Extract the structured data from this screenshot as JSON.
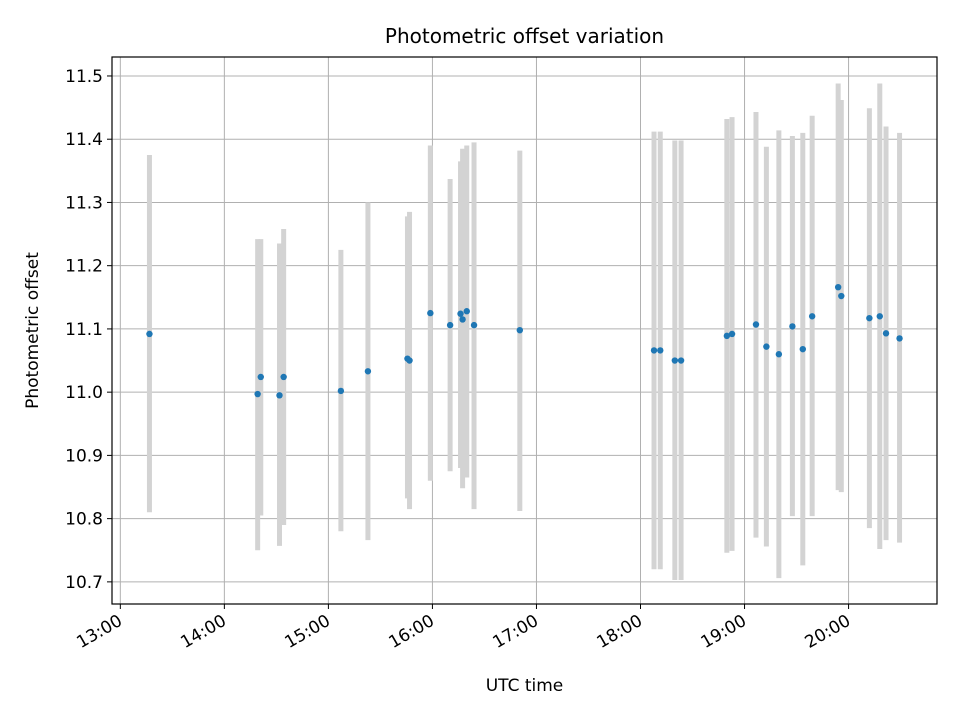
{
  "chart_data": {
    "type": "scatter",
    "title": "Photometric offset variation",
    "xlabel": "UTC time",
    "ylabel": "Photometric offset",
    "grid": true,
    "xlim_hours": [
      12.92,
      20.85
    ],
    "ylim": [
      10.665,
      11.53
    ],
    "x_ticks": [
      {
        "value": 13,
        "label": "13:00"
      },
      {
        "value": 14,
        "label": "14:00"
      },
      {
        "value": 15,
        "label": "15:00"
      },
      {
        "value": 16,
        "label": "16:00"
      },
      {
        "value": 17,
        "label": "17:00"
      },
      {
        "value": 18,
        "label": "18:00"
      },
      {
        "value": 19,
        "label": "19:00"
      },
      {
        "value": 20,
        "label": "20:00"
      }
    ],
    "y_ticks": [
      {
        "value": 10.7,
        "label": "10.7"
      },
      {
        "value": 10.8,
        "label": "10.8"
      },
      {
        "value": 10.9,
        "label": "10.9"
      },
      {
        "value": 11.0,
        "label": "11.0"
      },
      {
        "value": 11.1,
        "label": "11.1"
      },
      {
        "value": 11.2,
        "label": "11.2"
      },
      {
        "value": 11.3,
        "label": "11.3"
      },
      {
        "value": 11.4,
        "label": "11.4"
      },
      {
        "value": 11.5,
        "label": "11.5"
      }
    ],
    "colors": {
      "point": "#1f77b4",
      "errorbar": "#d3d3d3",
      "grid": "#b0b0b0"
    },
    "series": [
      {
        "name": "offset",
        "points": [
          {
            "x": 13.28,
            "y": 11.092,
            "lo": 10.81,
            "hi": 11.375
          },
          {
            "x": 14.32,
            "y": 10.997,
            "lo": 10.75,
            "hi": 11.242
          },
          {
            "x": 14.35,
            "y": 11.024,
            "lo": 10.805,
            "hi": 11.242
          },
          {
            "x": 14.53,
            "y": 10.995,
            "lo": 10.757,
            "hi": 11.235
          },
          {
            "x": 14.57,
            "y": 11.024,
            "lo": 10.79,
            "hi": 11.258
          },
          {
            "x": 15.12,
            "y": 11.002,
            "lo": 10.78,
            "hi": 11.225
          },
          {
            "x": 15.38,
            "y": 11.033,
            "lo": 10.766,
            "hi": 11.3
          },
          {
            "x": 15.76,
            "y": 11.053,
            "lo": 10.832,
            "hi": 11.278
          },
          {
            "x": 15.78,
            "y": 11.05,
            "lo": 10.815,
            "hi": 11.285
          },
          {
            "x": 15.98,
            "y": 11.125,
            "lo": 10.86,
            "hi": 11.39
          },
          {
            "x": 16.17,
            "y": 11.106,
            "lo": 10.875,
            "hi": 11.337
          },
          {
            "x": 16.27,
            "y": 11.124,
            "lo": 10.88,
            "hi": 11.365
          },
          {
            "x": 16.29,
            "y": 11.115,
            "lo": 10.848,
            "hi": 11.385
          },
          {
            "x": 16.33,
            "y": 11.128,
            "lo": 10.865,
            "hi": 11.39
          },
          {
            "x": 16.4,
            "y": 11.106,
            "lo": 10.815,
            "hi": 11.395
          },
          {
            "x": 16.84,
            "y": 11.098,
            "lo": 10.812,
            "hi": 11.382
          },
          {
            "x": 18.13,
            "y": 11.066,
            "lo": 10.72,
            "hi": 11.412
          },
          {
            "x": 18.19,
            "y": 11.066,
            "lo": 10.72,
            "hi": 11.412
          },
          {
            "x": 18.33,
            "y": 11.05,
            "lo": 10.703,
            "hi": 11.398
          },
          {
            "x": 18.39,
            "y": 11.05,
            "lo": 10.703,
            "hi": 11.398
          },
          {
            "x": 18.83,
            "y": 11.089,
            "lo": 10.746,
            "hi": 11.432
          },
          {
            "x": 18.88,
            "y": 11.092,
            "lo": 10.749,
            "hi": 11.435
          },
          {
            "x": 19.11,
            "y": 11.107,
            "lo": 10.77,
            "hi": 11.443
          },
          {
            "x": 19.21,
            "y": 11.072,
            "lo": 10.756,
            "hi": 11.388
          },
          {
            "x": 19.33,
            "y": 11.06,
            "lo": 10.706,
            "hi": 11.414
          },
          {
            "x": 19.46,
            "y": 11.104,
            "lo": 10.804,
            "hi": 11.405
          },
          {
            "x": 19.56,
            "y": 11.068,
            "lo": 10.726,
            "hi": 11.41
          },
          {
            "x": 19.65,
            "y": 11.12,
            "lo": 10.804,
            "hi": 11.437
          },
          {
            "x": 19.9,
            "y": 11.166,
            "lo": 10.845,
            "hi": 11.488
          },
          {
            "x": 19.93,
            "y": 11.152,
            "lo": 10.842,
            "hi": 11.462
          },
          {
            "x": 20.2,
            "y": 11.117,
            "lo": 10.785,
            "hi": 11.449
          },
          {
            "x": 20.3,
            "y": 11.12,
            "lo": 10.752,
            "hi": 11.488
          },
          {
            "x": 20.36,
            "y": 11.093,
            "lo": 10.766,
            "hi": 11.42
          },
          {
            "x": 20.49,
            "y": 11.085,
            "lo": 10.762,
            "hi": 11.41
          }
        ]
      }
    ]
  }
}
